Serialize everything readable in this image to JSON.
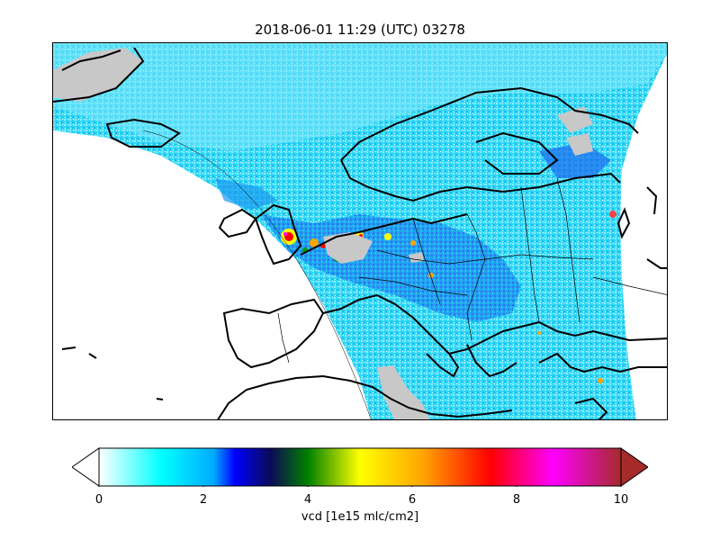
{
  "title": "2018-06-01 11:29 (UTC) 03278",
  "colorbar": {
    "label": "vcd [1e15 mlc/cm2]",
    "ticks": [
      "0",
      "2",
      "4",
      "6",
      "8",
      "10"
    ],
    "range": [
      0,
      10
    ],
    "colors": [
      "#ffffff",
      "#00ffff",
      "#0000ff",
      "#0b0b55",
      "#008000",
      "#ffff00",
      "#ffa500",
      "#ff0000",
      "#ff00ff",
      "#a52a2a"
    ],
    "extend": "both"
  },
  "map": {
    "region": "Europe",
    "land_mask_color": "#c8c8c8",
    "coastline_color": "#000000"
  }
}
